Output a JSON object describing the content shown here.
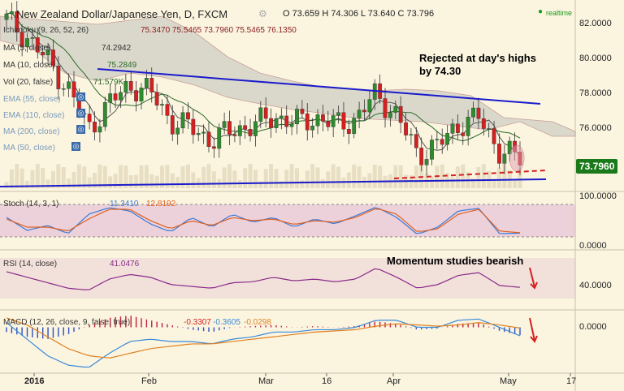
{
  "header": {
    "symbol_title": "New Zealand Dollar/Japanese Yen, D, FXCM",
    "ohlc": "O 73.659  H 74.306  L 73.640  C 73.796",
    "status": "realtime",
    "status_color": "#1a9a1a"
  },
  "indicators": {
    "ichimoku": {
      "label": "Ichimoku (9, 26, 52, 26)",
      "values": "75.3470  75.5465  73.7960  75.5465  76.1350"
    },
    "ma5": {
      "label": "MA (5, close)",
      "value": "74.2942"
    },
    "ma10": {
      "label": "MA (10, close)",
      "value": "75.2849"
    },
    "vol": {
      "label": "Vol (20, false)",
      "value": "71.579K"
    },
    "ema55": {
      "label": "EMA (55, close)"
    },
    "ema110": {
      "label": "EMA (110, close)"
    },
    "ma200": {
      "label": "MA (200, close)"
    },
    "ma50": {
      "label": "MA (50, close)"
    }
  },
  "annotations": {
    "rejected_line1": "Rejected at day's highs",
    "rejected_line2": "by 74.30",
    "momentum": "Momentum studies bearish"
  },
  "price_axis": {
    "ticks": [
      "82.0000",
      "80.0000",
      "78.0000",
      "76.0000"
    ],
    "current_price": "73.7960",
    "current_price_color": "#1a7a1a"
  },
  "stoch": {
    "label": "Stoch (14, 3, 1)",
    "k": "11.3410",
    "d": "12.8192",
    "ticks": [
      "100.0000",
      "0.0000"
    ]
  },
  "rsi": {
    "label": "RSI (14, close)",
    "value": "41.0476",
    "ticks": [
      "40.0000"
    ]
  },
  "macd": {
    "label": "MACD (12, 26, close, 9, false, true)",
    "hist": "-0.3307",
    "macd": "-0.3605",
    "signal": "-0.0298",
    "ticks": [
      "0.0000"
    ]
  },
  "time_axis": {
    "labels": [
      "2016",
      "Feb",
      "Mar",
      "16",
      "Apr",
      "May",
      "17"
    ]
  },
  "colors": {
    "bull": "#2e8b2e",
    "bear": "#d42020",
    "trendline": "#1a1acc",
    "support": "#d42020",
    "cloud": "#cfcfc5",
    "stoch_band": "#e8c8d8",
    "rsi_band": "#f0dcd8"
  },
  "chart_data": [
    {
      "type": "candlestick",
      "title": "New Zealand Dollar/Japanese Yen, D, FXCM",
      "x": [
        "2016-01-01",
        "2016-01-06",
        "2016-01-11",
        "2016-01-16",
        "2016-01-21",
        "2016-01-26",
        "2016-02-01",
        "2016-02-06",
        "2016-02-11",
        "2016-02-16",
        "2016-02-21",
        "2016-02-26",
        "2016-03-01",
        "2016-03-06",
        "2016-03-11",
        "2016-03-16",
        "2016-03-21",
        "2016-03-26",
        "2016-04-01",
        "2016-04-06",
        "2016-04-11",
        "2016-04-16",
        "2016-04-21",
        "2016-04-26",
        "2016-05-01",
        "2016-05-04"
      ],
      "close": [
        82.3,
        81.2,
        79.8,
        78.1,
        75.6,
        77.2,
        78.3,
        77.9,
        76.1,
        75.7,
        74.9,
        75.6,
        75.8,
        76.4,
        76.0,
        76.3,
        75.9,
        76.2,
        77.8,
        76.4,
        74.1,
        74.6,
        75.9,
        76.3,
        74.3,
        73.8
      ],
      "ylim": [
        72.5,
        83.0
      ],
      "yticks": [
        82,
        80,
        78,
        76
      ]
    },
    {
      "type": "line",
      "title": "Stoch (14, 3, 1)",
      "series": [
        {
          "name": "%K",
          "values": [
            60,
            20,
            35,
            10,
            70,
            90,
            80,
            40,
            15,
            60,
            30,
            70,
            45,
            60,
            30,
            55,
            40,
            65,
            92,
            60,
            8,
            30,
            80,
            88,
            10,
            11.3
          ]
        },
        {
          "name": "%D",
          "values": [
            55,
            30,
            30,
            18,
            55,
            85,
            85,
            50,
            25,
            50,
            35,
            60,
            50,
            55,
            38,
            50,
            45,
            60,
            88,
            70,
            15,
            25,
            70,
            85,
            18,
            12.8
          ]
        }
      ],
      "ylim": [
        0,
        100
      ]
    },
    {
      "type": "line",
      "title": "RSI (14, close)",
      "series": [
        {
          "name": "RSI",
          "values": [
            58,
            52,
            46,
            40,
            38,
            50,
            55,
            52,
            44,
            42,
            40,
            46,
            47,
            52,
            48,
            50,
            47,
            50,
            62,
            52,
            40,
            44,
            54,
            57,
            43,
            41.0
          ]
        }
      ],
      "ylim": [
        20,
        80
      ]
    },
    {
      "type": "bar",
      "title": "MACD (12, 26, close, 9, false, true)",
      "series": [
        {
          "name": "Histogram",
          "values": [
            -0.2,
            -0.4,
            -0.5,
            -0.3,
            0.1,
            0.4,
            0.5,
            0.3,
            0.1,
            -0.1,
            -0.2,
            0.0,
            0.05,
            0.1,
            0.0,
            0.05,
            0.0,
            0.05,
            0.25,
            0.15,
            -0.1,
            -0.05,
            0.15,
            0.2,
            -0.15,
            -0.33
          ]
        },
        {
          "name": "MACD",
          "values": [
            0.2,
            -0.5,
            -1.2,
            -1.6,
            -1.7,
            -1.1,
            -0.6,
            -0.5,
            -0.6,
            -0.6,
            -0.7,
            -0.5,
            -0.4,
            -0.2,
            -0.2,
            -0.1,
            -0.1,
            0.0,
            0.3,
            0.3,
            0.0,
            0.0,
            0.3,
            0.35,
            0.0,
            -0.36
          ]
        },
        {
          "name": "Signal",
          "values": [
            0.4,
            0.1,
            -0.4,
            -0.9,
            -1.2,
            -1.3,
            -1.1,
            -0.9,
            -0.8,
            -0.7,
            -0.7,
            -0.6,
            -0.5,
            -0.4,
            -0.3,
            -0.2,
            -0.15,
            -0.1,
            0.05,
            0.15,
            0.1,
            0.05,
            0.1,
            0.2,
            0.1,
            -0.03
          ]
        }
      ],
      "ylim": [
        -1.8,
        0.6
      ]
    }
  ]
}
